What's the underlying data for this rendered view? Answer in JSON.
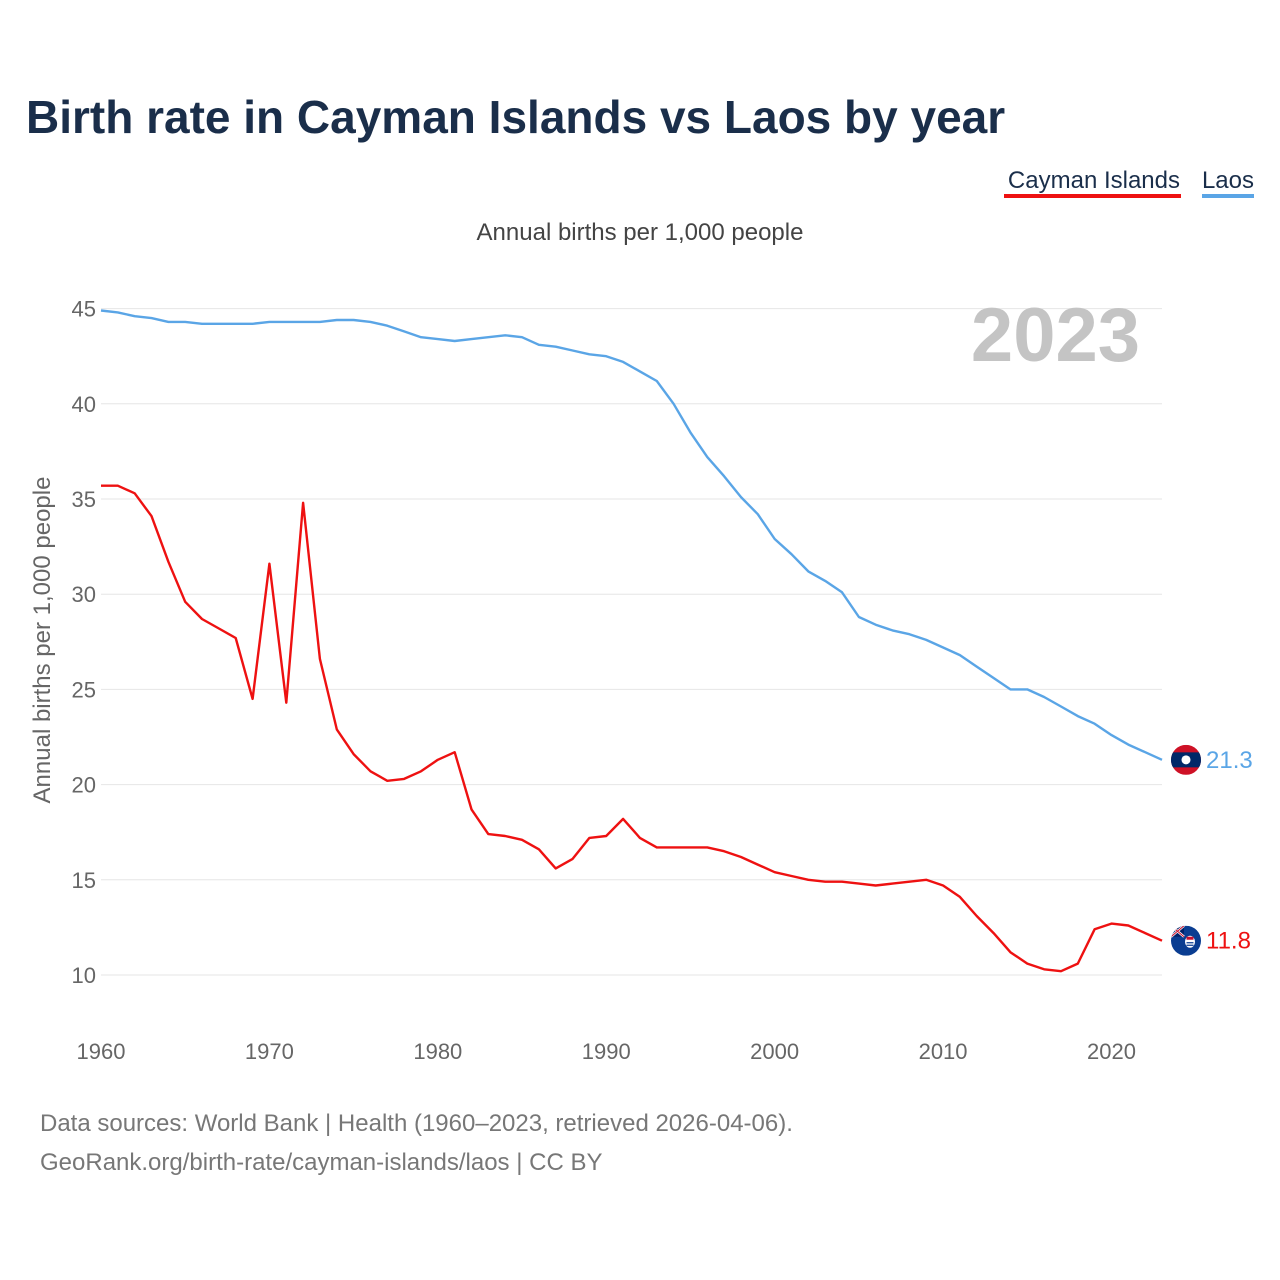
{
  "chart_data": {
    "type": "line",
    "title": "Birth rate in Cayman Islands vs Laos by year",
    "subtitle": "Annual births per 1,000 people",
    "ylabel": "Annual births per 1,000 people",
    "xlabel": "",
    "current_year": "2023",
    "xlim": [
      1960,
      2023
    ],
    "ylim": [
      8,
      46
    ],
    "yticks": [
      10,
      15,
      20,
      25,
      30,
      35,
      40,
      45
    ],
    "xticks": [
      1960,
      1970,
      1980,
      1990,
      2000,
      2010,
      2020
    ],
    "grid": true,
    "legend_position": "top-right",
    "x": [
      1960,
      1961,
      1962,
      1963,
      1964,
      1965,
      1966,
      1967,
      1968,
      1969,
      1970,
      1971,
      1972,
      1973,
      1974,
      1975,
      1976,
      1977,
      1978,
      1979,
      1980,
      1981,
      1982,
      1983,
      1984,
      1985,
      1986,
      1987,
      1988,
      1989,
      1990,
      1991,
      1992,
      1993,
      1994,
      1995,
      1996,
      1997,
      1998,
      1999,
      2000,
      2001,
      2002,
      2003,
      2004,
      2005,
      2006,
      2007,
      2008,
      2009,
      2010,
      2011,
      2012,
      2013,
      2014,
      2015,
      2016,
      2017,
      2018,
      2019,
      2020,
      2021,
      2022,
      2023
    ],
    "series": [
      {
        "name": "Cayman Islands",
        "color": "#ee1111",
        "end_label": "11.8",
        "flag": "cayman-islands-flag",
        "values": [
          35.7,
          35.7,
          35.3,
          34.1,
          31.7,
          29.6,
          28.7,
          28.2,
          27.7,
          24.5,
          31.6,
          24.3,
          34.8,
          26.6,
          22.9,
          21.6,
          20.7,
          20.2,
          20.3,
          20.7,
          21.3,
          21.7,
          18.7,
          17.4,
          17.3,
          17.1,
          16.6,
          15.6,
          16.1,
          17.2,
          17.3,
          18.2,
          17.2,
          16.7,
          16.7,
          16.7,
          16.7,
          16.5,
          16.2,
          15.8,
          15.4,
          15.2,
          15.0,
          14.9,
          14.9,
          14.8,
          14.7,
          14.8,
          14.9,
          15.0,
          14.7,
          14.1,
          13.1,
          12.2,
          11.2,
          10.6,
          10.3,
          10.2,
          10.6,
          12.4,
          12.7,
          12.6,
          12.2,
          11.8
        ]
      },
      {
        "name": "Laos",
        "color": "#5aa5e6",
        "end_label": "21.3",
        "flag": "laos-flag",
        "values": [
          44.9,
          44.8,
          44.6,
          44.5,
          44.3,
          44.3,
          44.2,
          44.2,
          44.2,
          44.2,
          44.3,
          44.3,
          44.3,
          44.3,
          44.4,
          44.4,
          44.3,
          44.1,
          43.8,
          43.5,
          43.4,
          43.3,
          43.4,
          43.5,
          43.6,
          43.5,
          43.1,
          43.0,
          42.8,
          42.6,
          42.5,
          42.2,
          41.7,
          41.2,
          40.0,
          38.5,
          37.2,
          36.2,
          35.1,
          34.2,
          32.9,
          32.1,
          31.2,
          30.7,
          30.1,
          28.8,
          28.4,
          28.1,
          27.9,
          27.6,
          27.2,
          26.8,
          26.2,
          25.6,
          25.0,
          25.0,
          24.6,
          24.1,
          23.6,
          23.2,
          22.6,
          22.1,
          21.7,
          21.3
        ]
      }
    ],
    "source_line1": "Data sources: World Bank | Health (1960–2023, retrieved 2026-04-06).",
    "source_line2": "GeoRank.org/birth-rate/cayman-islands/laos | CC BY"
  }
}
